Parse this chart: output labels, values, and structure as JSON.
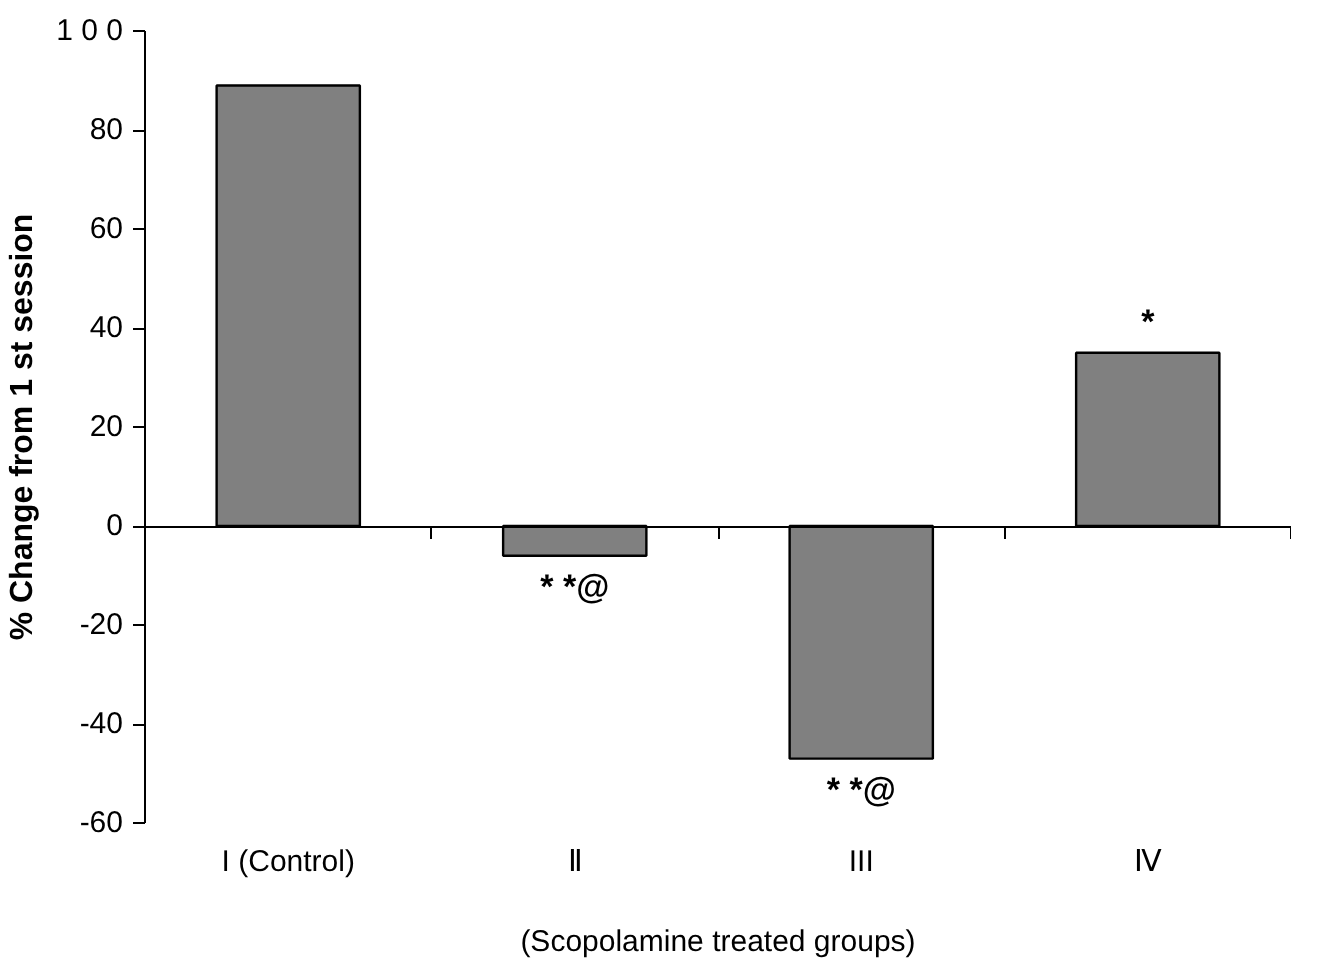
{
  "chart_data": {
    "type": "bar",
    "categories": [
      "I (Control)",
      "Ⅱ",
      "III",
      "Ⅳ"
    ],
    "values": [
      89,
      -6,
      -47,
      35
    ],
    "color": "#808080",
    "ylabel": "% Change from 1 st session",
    "xlabel": "(Scopolamine treated groups)",
    "ylim": [
      -60,
      100
    ],
    "yticks": [
      {
        "value": -60,
        "label": "-60"
      },
      {
        "value": -40,
        "label": "-40"
      },
      {
        "value": -20,
        "label": "-20"
      },
      {
        "value": 0,
        "label": "0"
      },
      {
        "value": 20,
        "label": "20"
      },
      {
        "value": 40,
        "label": "40"
      },
      {
        "value": 60,
        "label": "60"
      },
      {
        "value": 80,
        "label": "80"
      },
      {
        "value": 100,
        "label": "1 0 0"
      }
    ],
    "annotations": [
      {
        "text": "* *@",
        "x": "Ⅱ",
        "y": -6
      },
      {
        "text": "* *@",
        "x": "III",
        "y": -47
      },
      {
        "text": "*",
        "x": "Ⅳ",
        "y": 35
      }
    ]
  }
}
